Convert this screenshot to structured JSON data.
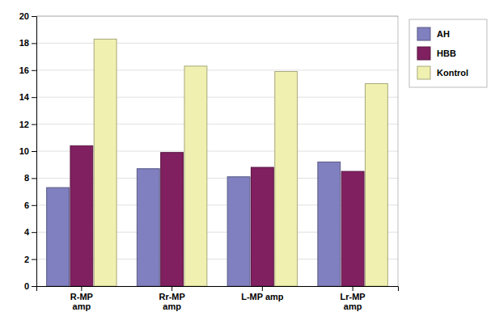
{
  "chart_data": {
    "type": "bar",
    "categories": [
      "R-MP\namp",
      "Rr-MP\namp",
      "L-MP amp",
      "Lr-MP\namp"
    ],
    "series": [
      {
        "name": "AH",
        "color": "#8080c0",
        "values": [
          7.3,
          8.7,
          8.1,
          9.2
        ]
      },
      {
        "name": "HBB",
        "color": "#802060",
        "values": [
          10.4,
          9.9,
          8.8,
          8.5
        ]
      },
      {
        "name": "Kontrol",
        "color": "#f0f0b0",
        "values": [
          18.3,
          16.3,
          15.9,
          15.0
        ]
      }
    ],
    "ylim": [
      0,
      20
    ],
    "yticks": [
      0,
      2,
      4,
      6,
      8,
      10,
      12,
      14,
      16,
      18,
      20
    ],
    "grid": true,
    "legend": "right"
  }
}
